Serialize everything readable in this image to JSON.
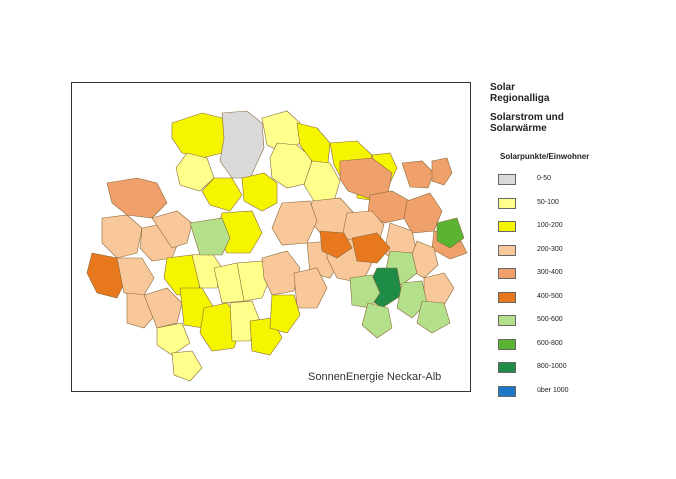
{
  "title": {
    "line1": "Solar",
    "line2": "Regionalliga",
    "line3": "Solarstrom und",
    "line4": "Solarwärme"
  },
  "legend": {
    "heading": "Solarpunkte/Einwohner",
    "classes": [
      {
        "label": "0-50",
        "color": "#d9d9d9"
      },
      {
        "label": "50-100",
        "color": "#ffff8c"
      },
      {
        "label": "100-200",
        "color": "#f5f500"
      },
      {
        "label": "200-300",
        "color": "#f8c79a"
      },
      {
        "label": "300-400",
        "color": "#f0a06a"
      },
      {
        "label": "400-500",
        "color": "#e8781e"
      },
      {
        "label": "500-600",
        "color": "#b4e08c"
      },
      {
        "label": "600-800",
        "color": "#5ab432"
      },
      {
        "label": "800-1000",
        "color": "#1e8c46"
      },
      {
        "label": "über 1000",
        "color": "#1e78c8"
      }
    ]
  },
  "map": {
    "source_label": "SonnenEnergie Neckar-Alb",
    "outline_color": "#8a6a3a"
  }
}
